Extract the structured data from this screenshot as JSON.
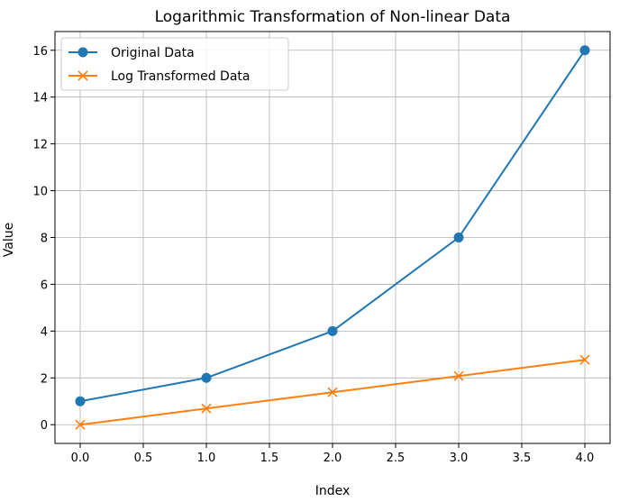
{
  "chart_data": {
    "type": "line",
    "title": "Logarithmic Transformation of Non-linear Data",
    "xlabel": "Index",
    "ylabel": "Value",
    "xlim": [
      -0.2,
      4.2
    ],
    "ylim": [
      -0.8,
      16.8
    ],
    "x_ticks": [
      0.0,
      0.5,
      1.0,
      1.5,
      2.0,
      2.5,
      3.0,
      3.5,
      4.0
    ],
    "x_tick_labels": [
      "0.0",
      "0.5",
      "1.0",
      "1.5",
      "2.0",
      "2.5",
      "3.0",
      "3.5",
      "4.0"
    ],
    "y_ticks": [
      0,
      2,
      4,
      6,
      8,
      10,
      12,
      14,
      16
    ],
    "y_tick_labels": [
      "0",
      "2",
      "4",
      "6",
      "8",
      "10",
      "12",
      "14",
      "16"
    ],
    "grid": true,
    "legend_position": "top-left",
    "x": [
      0,
      1,
      2,
      3,
      4
    ],
    "series": [
      {
        "name": "Original Data",
        "values": [
          1,
          2,
          4,
          8,
          16
        ],
        "color": "#1f77b4",
        "marker": "circle"
      },
      {
        "name": "Log Transformed Data",
        "values": [
          0,
          0.693,
          1.386,
          2.079,
          2.773
        ],
        "color": "#ff7f0e",
        "marker": "x"
      }
    ]
  }
}
